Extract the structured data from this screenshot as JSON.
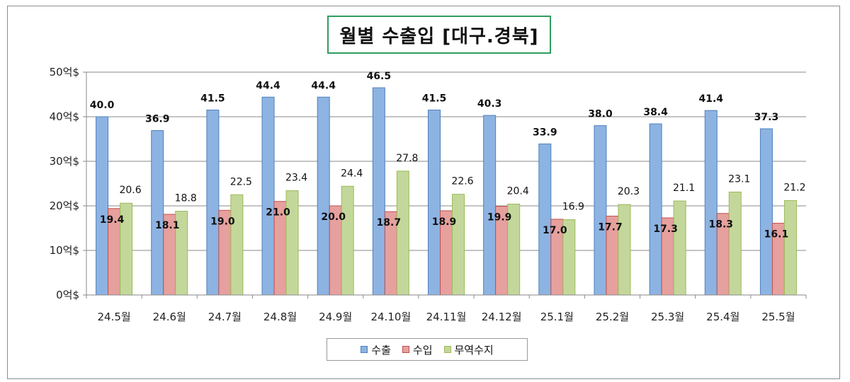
{
  "chart_data": {
    "type": "bar",
    "title": "월별 수출입 [대구.경북]",
    "categories": [
      "24.5월",
      "24.6월",
      "24.7월",
      "24.8월",
      "24.9월",
      "24.10월",
      "24.11월",
      "24.12월",
      "25.1월",
      "25.2월",
      "25.3월",
      "25.4월",
      "25.5월"
    ],
    "y_ticks": [
      "0억$",
      "10억$",
      "20억$",
      "30억$",
      "40억$",
      "50억$"
    ],
    "ylim": [
      0,
      50
    ],
    "grid": true,
    "legend_position": "bottom",
    "series": [
      {
        "name": "수출",
        "color": "#8db3e2",
        "stroke": "#4f81bd",
        "label_style": "bold-above",
        "values": [
          40.0,
          36.9,
          41.5,
          44.4,
          44.4,
          46.5,
          41.5,
          40.3,
          33.9,
          38.0,
          38.4,
          41.4,
          37.3
        ],
        "labels": [
          "40.0",
          "36.9",
          "41.5",
          "44.4",
          "44.4",
          "46.5",
          "41.5",
          "40.3",
          "33.9",
          "38.0",
          "38.4",
          "41.4",
          "37.3"
        ]
      },
      {
        "name": "수입",
        "color": "#e6a09e",
        "stroke": "#c0504d",
        "label_style": "bold-inside",
        "values": [
          19.4,
          18.1,
          19.0,
          21.0,
          20.0,
          18.7,
          18.9,
          19.9,
          17.0,
          17.7,
          17.3,
          18.3,
          16.1
        ],
        "labels": [
          "19.4",
          "18.1",
          "19.0",
          "21.0",
          "20.0",
          "18.7",
          "18.9",
          "19.9",
          "17.0",
          "17.7",
          "17.3",
          "18.3",
          "16.1"
        ]
      },
      {
        "name": "무역수지",
        "color": "#c4d79b",
        "stroke": "#9bbb59",
        "label_style": "normal-above",
        "values": [
          20.6,
          18.8,
          22.5,
          23.4,
          24.4,
          27.8,
          22.6,
          20.4,
          16.9,
          20.3,
          21.1,
          23.1,
          21.2
        ],
        "labels": [
          "20.6",
          "18.8",
          "22.5",
          "23.4",
          "24.4",
          "27.8",
          "22.6",
          "20.4",
          "16.9",
          "20.3",
          "21.1",
          "23.1",
          "21.2"
        ]
      }
    ]
  }
}
